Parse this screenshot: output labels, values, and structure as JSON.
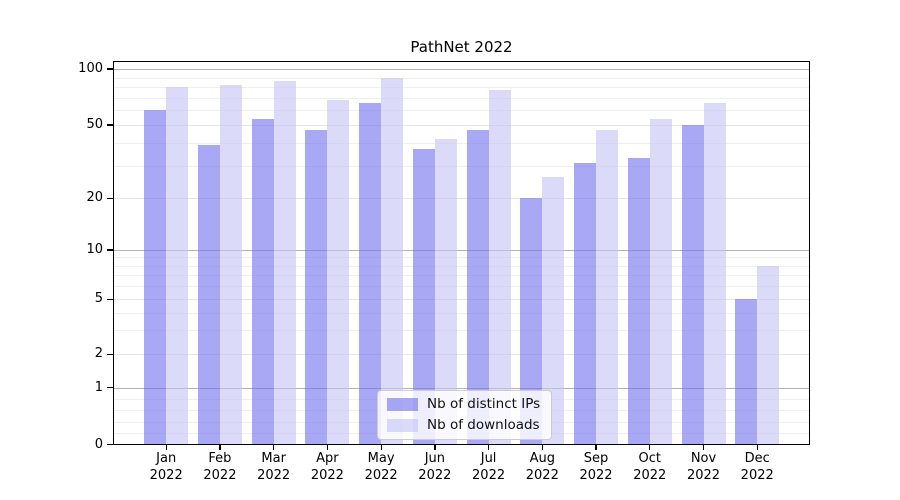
{
  "title": "PathNet 2022",
  "legend": {
    "items": [
      {
        "label": "Nb of distinct IPs"
      },
      {
        "label": "Nb of downloads"
      }
    ]
  },
  "colors": {
    "distinct_ips_bar": "rgba(110,110,238,0.6)",
    "downloads_bar": "rgba(195,195,245,0.6)",
    "major_gridline": "#b3b3b3",
    "mid_gridline": "#e6e6e6",
    "minor_gridline": "#efefef",
    "axis": "#000000"
  },
  "chart_data": {
    "type": "bar",
    "title": "PathNet 2022",
    "x_axis": {
      "months": [
        "Jan",
        "Feb",
        "Mar",
        "Apr",
        "May",
        "Jun",
        "Jul",
        "Aug",
        "Sep",
        "Oct",
        "Nov",
        "Dec"
      ],
      "year": "2022"
    },
    "categories": [
      "Jan 2022",
      "Feb 2022",
      "Mar 2022",
      "Apr 2022",
      "May 2022",
      "Jun 2022",
      "Jul 2022",
      "Aug 2022",
      "Sep 2022",
      "Oct 2022",
      "Nov 2022",
      "Dec 2022"
    ],
    "series": [
      {
        "name": "Nb of distinct IPs",
        "key": "distinct-ips",
        "color": "rgba(110,110,238,0.6)",
        "values": [
          60,
          39,
          54,
          47,
          66,
          37,
          47,
          20,
          31,
          33,
          50,
          5
        ]
      },
      {
        "name": "Nb of downloads",
        "key": "downloads",
        "color": "rgba(195,195,245,0.6)",
        "values": [
          80,
          82,
          86,
          68,
          90,
          42,
          77,
          26,
          47,
          54,
          66,
          8
        ]
      }
    ],
    "y_ticks": [
      0,
      1,
      2,
      5,
      10,
      20,
      50,
      100
    ],
    "ylim": [
      0,
      110
    ],
    "y_scale": "symlog (logarithmic above 1, linear 0 to 1)",
    "grid": true,
    "legend_position": "lower center"
  }
}
